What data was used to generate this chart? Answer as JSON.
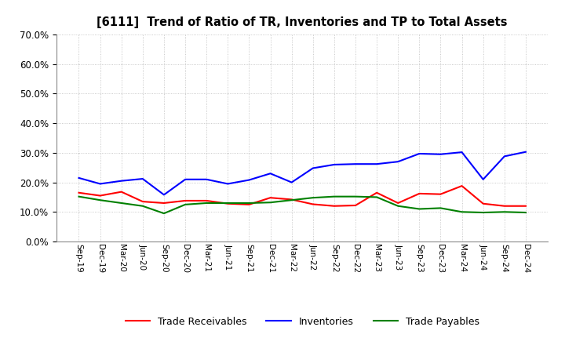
{
  "title": "[6111]  Trend of Ratio of TR, Inventories and TP to Total Assets",
  "x_labels": [
    "Sep-19",
    "Dec-19",
    "Mar-20",
    "Jun-20",
    "Sep-20",
    "Dec-20",
    "Mar-21",
    "Jun-21",
    "Sep-21",
    "Dec-21",
    "Mar-22",
    "Jun-22",
    "Sep-22",
    "Dec-22",
    "Mar-23",
    "Jun-23",
    "Sep-23",
    "Dec-23",
    "Mar-24",
    "Jun-24",
    "Sep-24",
    "Dec-24"
  ],
  "trade_receivables": [
    0.165,
    0.155,
    0.168,
    0.135,
    0.13,
    0.138,
    0.138,
    0.128,
    0.125,
    0.148,
    0.142,
    0.126,
    0.12,
    0.122,
    0.165,
    0.13,
    0.162,
    0.16,
    0.188,
    0.128,
    0.12,
    0.12
  ],
  "inventories": [
    0.215,
    0.195,
    0.205,
    0.212,
    0.158,
    0.21,
    0.21,
    0.195,
    0.208,
    0.23,
    0.2,
    0.248,
    0.26,
    0.262,
    0.262,
    0.27,
    0.297,
    0.295,
    0.302,
    0.21,
    0.288,
    0.303
  ],
  "trade_payables": [
    0.152,
    0.14,
    0.13,
    0.12,
    0.095,
    0.125,
    0.13,
    0.13,
    0.13,
    0.132,
    0.14,
    0.148,
    0.152,
    0.152,
    0.15,
    0.12,
    0.11,
    0.113,
    0.1,
    0.098,
    0.1,
    0.098
  ],
  "ylim": [
    0.0,
    0.7
  ],
  "yticks": [
    0.0,
    0.1,
    0.2,
    0.3,
    0.4,
    0.5,
    0.6,
    0.7
  ],
  "line_colors": {
    "trade_receivables": "#ff0000",
    "inventories": "#0000ff",
    "trade_payables": "#008000"
  },
  "legend_labels": [
    "Trade Receivables",
    "Inventories",
    "Trade Payables"
  ],
  "background_color": "#ffffff",
  "grid_color": "#aaaaaa"
}
